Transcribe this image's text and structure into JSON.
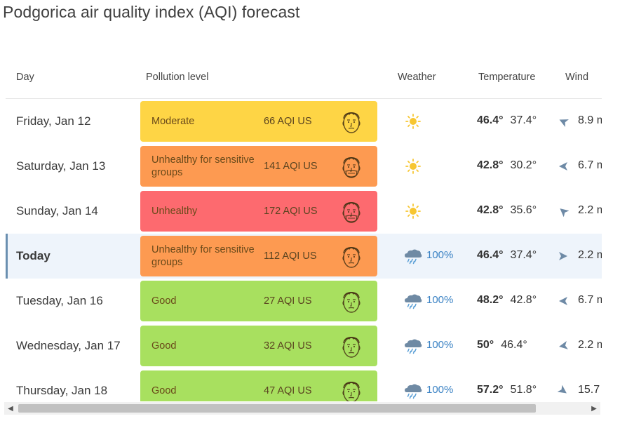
{
  "title": "Podgorica air quality index (AQI) forecast",
  "headers": {
    "day": "Day",
    "pollution": "Pollution level",
    "weather": "Weather",
    "temperature": "Temperature",
    "wind": "Wind"
  },
  "colors": {
    "moderate": "#fed545",
    "usg": "#fd9a51",
    "unhealthy": "#fd6a6f",
    "good": "#a8e05f",
    "rain": "#3a82c4"
  },
  "rows": [
    {
      "day": "Friday, Jan 12",
      "level": "Moderate",
      "aqi": "66 AQI US",
      "color": "moderate",
      "weather": "sun-icon",
      "rain": "",
      "temp_hi": "46.4°",
      "temp_lo": "37.4°",
      "wind": "8.9 m",
      "wind_dir": "wind-arrow-icon",
      "today": false
    },
    {
      "day": "Saturday, Jan 13",
      "level": "Unhealthy for sensitive groups",
      "aqi": "141 AQI US",
      "color": "usg",
      "weather": "sun-icon",
      "rain": "",
      "temp_hi": "42.8°",
      "temp_lo": "30.2°",
      "wind": "6.7 m",
      "wind_dir": "wind-arrow-icon",
      "today": false
    },
    {
      "day": "Sunday, Jan 14",
      "level": "Unhealthy",
      "aqi": "172 AQI US",
      "color": "unhealthy",
      "weather": "sun-icon",
      "rain": "",
      "temp_hi": "42.8°",
      "temp_lo": "35.6°",
      "wind": "2.2 m",
      "wind_dir": "wind-arrow-icon",
      "today": false
    },
    {
      "day": "Today",
      "level": "Unhealthy for sensitive groups",
      "aqi": "112 AQI US",
      "color": "usg",
      "weather": "rain-cloud-icon",
      "rain": "100%",
      "temp_hi": "46.4°",
      "temp_lo": "37.4°",
      "wind": "2.2 m",
      "wind_dir": "wind-arrow-icon",
      "today": true
    },
    {
      "day": "Tuesday, Jan 16",
      "level": "Good",
      "aqi": "27 AQI US",
      "color": "good",
      "weather": "rain-cloud-icon",
      "rain": "100%",
      "temp_hi": "48.2°",
      "temp_lo": "42.8°",
      "wind": "6.7 m",
      "wind_dir": "wind-arrow-icon",
      "today": false
    },
    {
      "day": "Wednesday, Jan 17",
      "level": "Good",
      "aqi": "32 AQI US",
      "color": "good",
      "weather": "rain-cloud-icon",
      "rain": "100%",
      "temp_hi": "50°",
      "temp_lo": "46.4°",
      "wind": "2.2 m",
      "wind_dir": "wind-arrow-icon",
      "today": false
    },
    {
      "day": "Thursday, Jan 18",
      "level": "Good",
      "aqi": "47 AQI US",
      "color": "good",
      "weather": "rain-cloud-icon",
      "rain": "100%",
      "temp_hi": "57.2°",
      "temp_lo": "51.8°",
      "wind": "15.7",
      "wind_dir": "wind-arrow-icon",
      "today": false
    }
  ]
}
